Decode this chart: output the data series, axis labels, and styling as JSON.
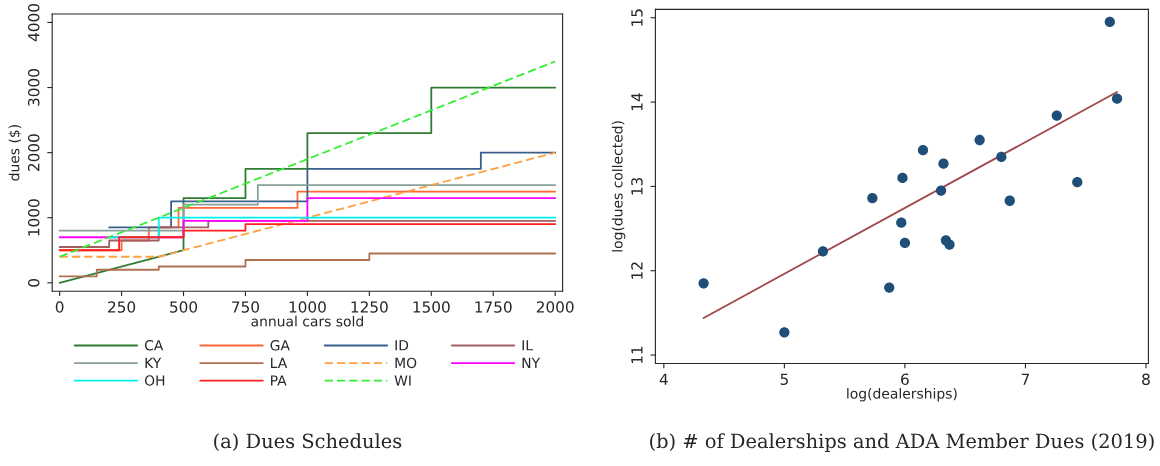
{
  "chart_data": [
    {
      "type": "line",
      "title": "(a) Dues Schedules",
      "xlabel": "annual cars sold",
      "ylabel": "dues ($)",
      "xlim": [
        -30,
        2030
      ],
      "ylim": [
        -130,
        4130
      ],
      "xticks": [
        0,
        250,
        500,
        750,
        1000,
        1250,
        1500,
        1750,
        2000
      ],
      "yticks": [
        0,
        1000,
        2000,
        3000,
        4000
      ],
      "grid": false,
      "legend": "bottom",
      "marker": "none",
      "series": [
        {
          "name": "CA",
          "color": "#2e7d32",
          "line_style": "solid",
          "x": [
            0,
            500,
            500,
            750,
            750,
            1000,
            1000,
            1500,
            1500,
            2000
          ],
          "values": [
            0,
            500,
            1300,
            1300,
            1750,
            1750,
            2300,
            2300,
            3000,
            3000
          ]
        },
        {
          "name": "GA",
          "color": "#ff6633",
          "line_style": "solid",
          "x": [
            0,
            250,
            250,
            360,
            360,
            480,
            480,
            960,
            960,
            2000
          ],
          "values": [
            500,
            500,
            650,
            650,
            850,
            850,
            1150,
            1150,
            1400,
            1400
          ]
        },
        {
          "name": "ID",
          "color": "#3a5f8a",
          "line_style": "solid",
          "x": [
            200,
            450,
            450,
            1000,
            1000,
            1700,
            1700,
            2000
          ],
          "values": [
            850,
            850,
            1250,
            1250,
            1750,
            1750,
            2000,
            2000
          ]
        },
        {
          "name": "IL",
          "color": "#a06060",
          "line_style": "solid",
          "x": [
            0,
            200,
            200,
            400,
            400,
            600,
            600,
            2000
          ],
          "values": [
            550,
            550,
            650,
            650,
            850,
            850,
            950,
            950
          ]
        },
        {
          "name": "KY",
          "color": "#88a09a",
          "line_style": "solid",
          "x": [
            0,
            500,
            500,
            800,
            800,
            2000
          ],
          "values": [
            800,
            800,
            1200,
            1200,
            1500,
            1500
          ]
        },
        {
          "name": "LA",
          "color": "#b07050",
          "line_style": "solid",
          "x": [
            0,
            150,
            150,
            400,
            400,
            750,
            750,
            1250,
            1250,
            2000
          ],
          "values": [
            100,
            100,
            200,
            200,
            250,
            250,
            350,
            350,
            450,
            450
          ]
        },
        {
          "name": "MO",
          "color": "#ffa040",
          "line_style": "dashed",
          "x": [
            0,
            400,
            2000
          ],
          "values": [
            400,
            400,
            2000
          ]
        },
        {
          "name": "NY",
          "color": "#ff00ff",
          "line_style": "solid",
          "x": [
            0,
            500,
            500,
            1000,
            1000,
            2000
          ],
          "values": [
            700,
            700,
            950,
            950,
            1300,
            1300
          ]
        },
        {
          "name": "OH",
          "color": "#00f0f0",
          "line_style": "solid",
          "x": [
            200,
            400,
            400,
            2000
          ],
          "values": [
            700,
            700,
            1000,
            1000
          ]
        },
        {
          "name": "PA",
          "color": "#ff2020",
          "line_style": "solid",
          "x": [
            0,
            240,
            240,
            500,
            500,
            750,
            750,
            2000
          ],
          "values": [
            500,
            500,
            700,
            700,
            800,
            800,
            900,
            900
          ]
        },
        {
          "name": "WI",
          "color": "#33ee33",
          "line_style": "dashed",
          "x": [
            0,
            2000
          ],
          "values": [
            400,
            3400
          ]
        }
      ]
    },
    {
      "type": "scatter",
      "title": "(b) # of Dealerships and ADA Member Dues (2019)",
      "xlabel": "log(dealerships)",
      "ylabel": "log(dues collected)",
      "xlim": [
        3.93,
        8.02
      ],
      "ylim": [
        10.9,
        15.1
      ],
      "xticks": [
        4,
        5,
        6,
        7,
        8
      ],
      "yticks": [
        11,
        12,
        13,
        14,
        15
      ],
      "grid": false,
      "series": [
        {
          "type": "scatter",
          "marker": "circle",
          "color": "#1f4e79",
          "x": [
            4.33,
            5.0,
            5.32,
            5.73,
            5.87,
            5.97,
            5.98,
            6.0,
            6.15,
            6.3,
            6.32,
            6.34,
            6.37,
            6.62,
            6.8,
            6.87,
            7.26,
            7.43,
            7.7,
            7.76
          ],
          "values": [
            11.85,
            11.27,
            12.23,
            12.86,
            11.8,
            12.57,
            13.1,
            12.33,
            13.43,
            12.95,
            13.27,
            12.36,
            12.31,
            13.55,
            13.35,
            12.83,
            13.84,
            13.05,
            14.95,
            14.04
          ]
        },
        {
          "type": "line",
          "color": "#a0484c",
          "x": [
            4.33,
            7.76
          ],
          "values": [
            11.44,
            14.12
          ]
        }
      ]
    }
  ]
}
